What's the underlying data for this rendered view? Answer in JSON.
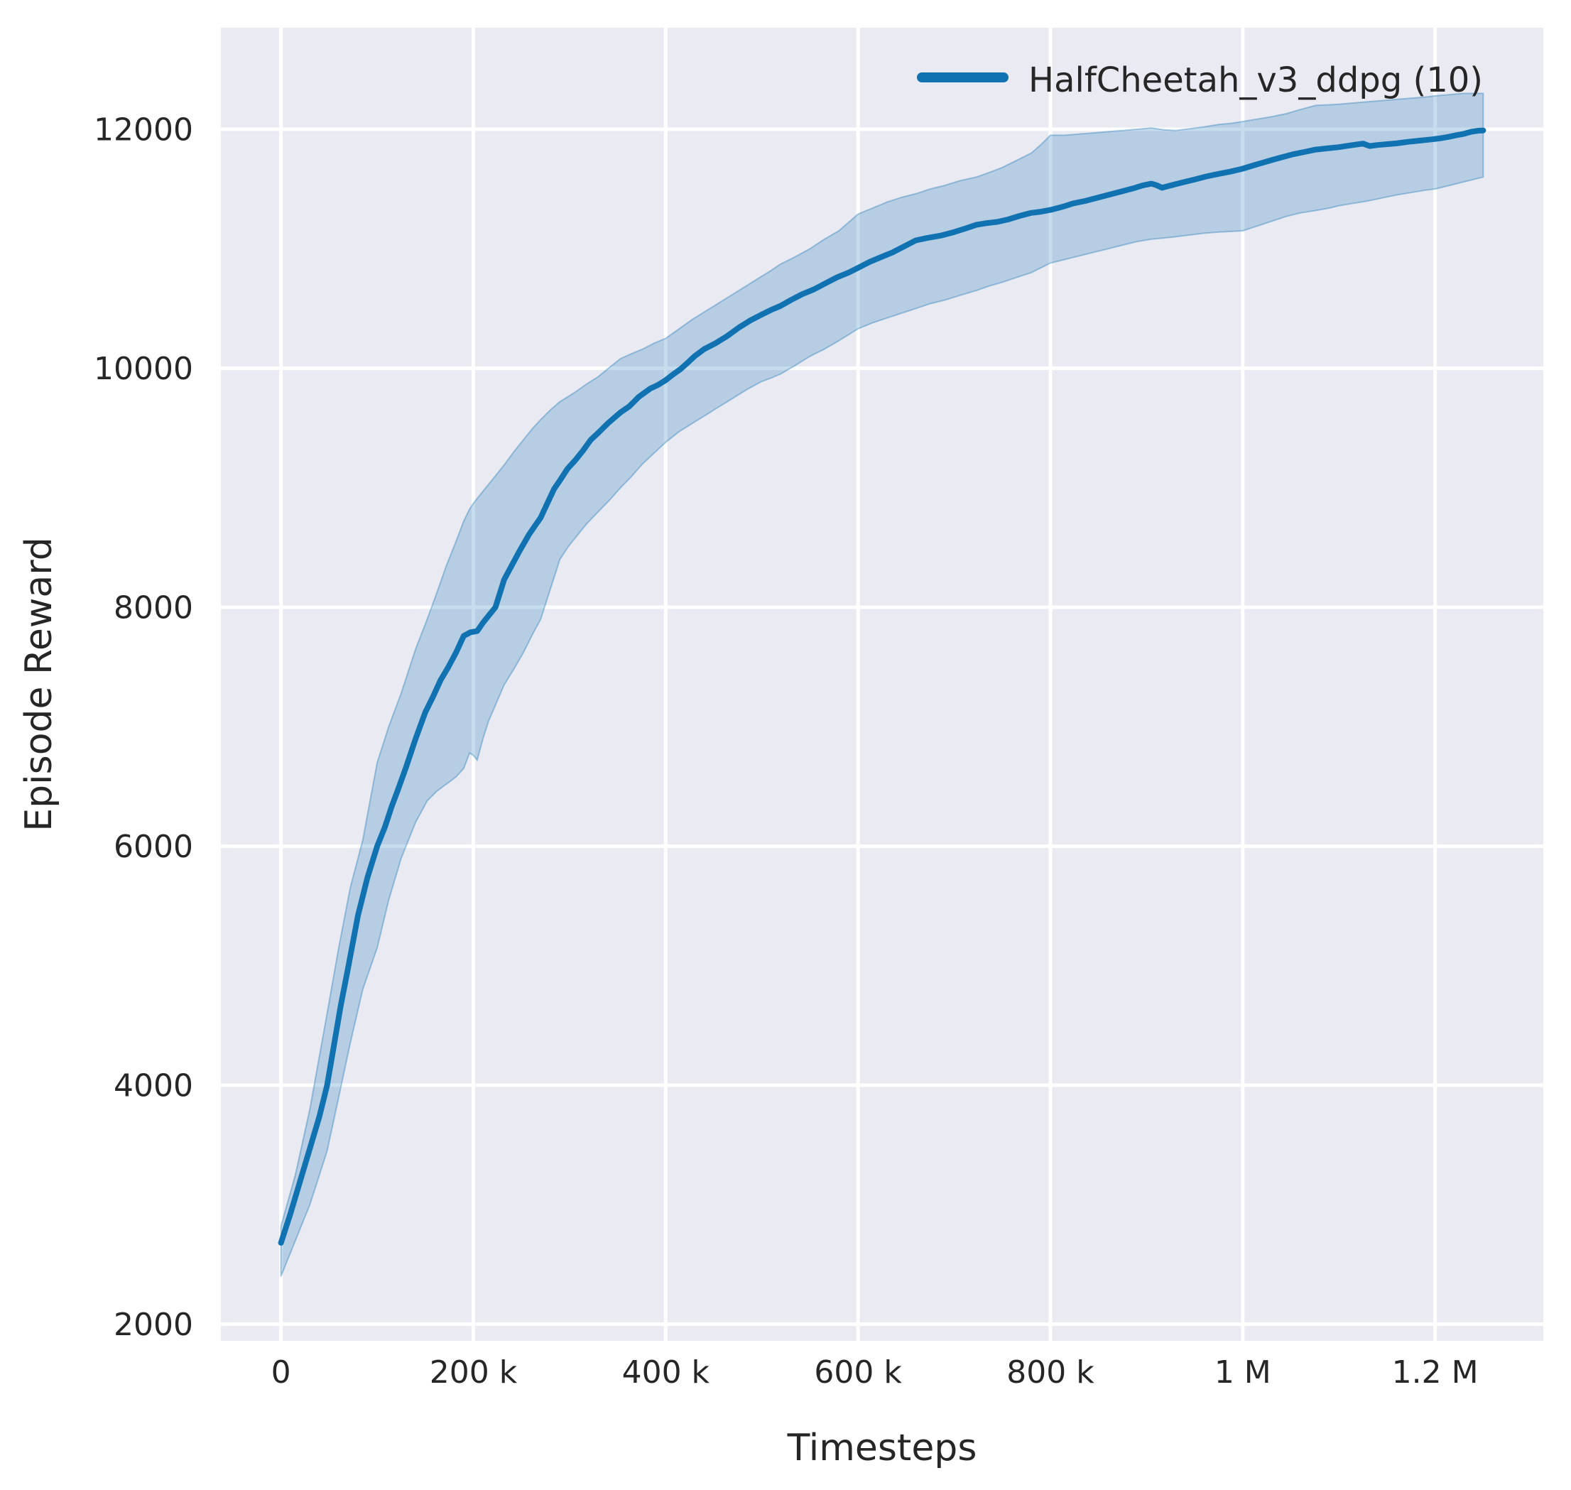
{
  "figure": {
    "background": "#ffffff",
    "plot_background": "#eaeaf2",
    "grid_color": "#ffffff",
    "text_color": "#262626"
  },
  "chart_data": {
    "type": "line",
    "title": "",
    "xlabel": "Timesteps",
    "ylabel": "Episode Reward",
    "grid": true,
    "legend_position": "upper right",
    "legend": [
      {
        "label": "HalfCheetah_v3_ddpg (10)",
        "color": "#1172b2"
      }
    ],
    "x_axis": {
      "unit": "timesteps",
      "domain_k": [
        -62.5,
        1312.5
      ],
      "ticks": [
        {
          "value_k": 0,
          "label": "0"
        },
        {
          "value_k": 200,
          "label": "200 k"
        },
        {
          "value_k": 400,
          "label": "400 k"
        },
        {
          "value_k": 600,
          "label": "600 k"
        },
        {
          "value_k": 800,
          "label": "800 k"
        },
        {
          "value_k": 1000,
          "label": "1 M"
        },
        {
          "value_k": 1200,
          "label": "1.2 M"
        }
      ]
    },
    "y_axis": {
      "unit": "episode reward",
      "domain": [
        1860,
        12850
      ],
      "ticks": [
        {
          "value": 2000,
          "label": "2000"
        },
        {
          "value": 4000,
          "label": "4000"
        },
        {
          "value": 6000,
          "label": "6000"
        },
        {
          "value": 8000,
          "label": "8000"
        },
        {
          "value": 10000,
          "label": "10000"
        },
        {
          "value": 12000,
          "label": "12000"
        }
      ]
    },
    "series": [
      {
        "name": "HalfCheetah_v3_ddpg (10)",
        "color": "#1172b2",
        "line_width": 8,
        "band_alpha": 0.24,
        "x_k": [
          0,
          10,
          20,
          30,
          40,
          48,
          55,
          62,
          70,
          80,
          90,
          100,
          108,
          115,
          122,
          130,
          140,
          150,
          158,
          166,
          174,
          182,
          190,
          197,
          204,
          210,
          216,
          223,
          232,
          240,
          248,
          258,
          264,
          270,
          277,
          284,
          290,
          298,
          306,
          314,
          322,
          330,
          340,
          353,
          362,
          372,
          384,
          392,
          400,
          408,
          415,
          422,
          430,
          440,
          452,
          464,
          476,
          488,
          500,
          510,
          519,
          530,
          542,
          554,
          566,
          578,
          590,
          600,
          612,
          624,
          636,
          648,
          660,
          672,
          686,
          700,
          712,
          723,
          734,
          745,
          756,
          768,
          780,
          790,
          800,
          812,
          824,
          836,
          848,
          860,
          872,
          886,
          896,
          905,
          911,
          916,
          923,
          930,
          940,
          950,
          962,
          974,
          987,
          1000,
          1012,
          1025,
          1038,
          1052,
          1064,
          1076,
          1088,
          1100,
          1112,
          1125,
          1132,
          1140,
          1150,
          1160,
          1172,
          1184,
          1196,
          1206,
          1213,
          1222,
          1230,
          1238,
          1245,
          1250
        ],
        "mean": [
          2680,
          2930,
          3200,
          3470,
          3740,
          4000,
          4330,
          4660,
          4990,
          5420,
          5740,
          6000,
          6160,
          6330,
          6480,
          6660,
          6900,
          7120,
          7250,
          7390,
          7500,
          7620,
          7760,
          7790,
          7800,
          7870,
          7930,
          8000,
          8230,
          8350,
          8470,
          8610,
          8680,
          8750,
          8870,
          8990,
          9060,
          9160,
          9230,
          9310,
          9400,
          9460,
          9540,
          9630,
          9680,
          9760,
          9830,
          9860,
          9900,
          9950,
          9990,
          10040,
          10100,
          10160,
          10210,
          10270,
          10340,
          10400,
          10450,
          10490,
          10520,
          10570,
          10620,
          10660,
          10710,
          10760,
          10800,
          10840,
          10890,
          10930,
          10970,
          11020,
          11070,
          11090,
          11110,
          11140,
          11170,
          11200,
          11215,
          11225,
          11245,
          11275,
          11300,
          11310,
          11325,
          11350,
          11380,
          11400,
          11425,
          11450,
          11475,
          11505,
          11530,
          11545,
          11530,
          11510,
          11525,
          11540,
          11560,
          11580,
          11605,
          11625,
          11645,
          11670,
          11700,
          11730,
          11760,
          11790,
          11810,
          11830,
          11840,
          11850,
          11865,
          11880,
          11860,
          11868,
          11875,
          11882,
          11895,
          11905,
          11915,
          11925,
          11935,
          11950,
          11962,
          11980,
          11988,
          11990
        ],
        "band": [
          [
            0,
            2400,
            2820
          ],
          [
            15,
            2700,
            3250
          ],
          [
            30,
            3000,
            3800
          ],
          [
            48,
            3450,
            4600
          ],
          [
            60,
            3900,
            5150
          ],
          [
            72,
            4350,
            5650
          ],
          [
            85,
            4800,
            6050
          ],
          [
            100,
            5150,
            6700
          ],
          [
            112,
            5550,
            7000
          ],
          [
            125,
            5900,
            7280
          ],
          [
            140,
            6200,
            7650
          ],
          [
            152,
            6380,
            7900
          ],
          [
            162,
            6460,
            8120
          ],
          [
            172,
            6520,
            8350
          ],
          [
            182,
            6580,
            8550
          ],
          [
            190,
            6650,
            8720
          ],
          [
            196,
            6780,
            8820
          ],
          [
            200,
            6760,
            8870
          ],
          [
            204,
            6720,
            8910
          ],
          [
            210,
            6900,
            8970
          ],
          [
            216,
            7050,
            9030
          ],
          [
            224,
            7200,
            9110
          ],
          [
            232,
            7350,
            9190
          ],
          [
            242,
            7480,
            9300
          ],
          [
            252,
            7620,
            9400
          ],
          [
            262,
            7780,
            9500
          ],
          [
            270,
            7900,
            9570
          ],
          [
            280,
            8150,
            9650
          ],
          [
            290,
            8400,
            9720
          ],
          [
            298,
            8500,
            9760
          ],
          [
            306,
            8580,
            9800
          ],
          [
            318,
            8700,
            9870
          ],
          [
            330,
            8800,
            9930
          ],
          [
            342,
            8900,
            10010
          ],
          [
            353,
            9000,
            10080
          ],
          [
            364,
            9090,
            10120
          ],
          [
            376,
            9200,
            10160
          ],
          [
            388,
            9290,
            10210
          ],
          [
            400,
            9380,
            10250
          ],
          [
            414,
            9470,
            10330
          ],
          [
            428,
            9540,
            10410
          ],
          [
            442,
            9610,
            10480
          ],
          [
            456,
            9680,
            10550
          ],
          [
            470,
            9750,
            10620
          ],
          [
            484,
            9820,
            10690
          ],
          [
            500,
            9890,
            10770
          ],
          [
            510,
            9920,
            10820
          ],
          [
            519,
            9950,
            10870
          ],
          [
            534,
            10020,
            10930
          ],
          [
            550,
            10100,
            11000
          ],
          [
            565,
            10160,
            11080
          ],
          [
            580,
            10230,
            11150
          ],
          [
            590,
            10280,
            11220
          ],
          [
            600,
            10330,
            11290
          ],
          [
            615,
            10380,
            11340
          ],
          [
            630,
            10420,
            11390
          ],
          [
            645,
            10460,
            11430
          ],
          [
            660,
            10500,
            11460
          ],
          [
            675,
            10540,
            11500
          ],
          [
            690,
            10570,
            11530
          ],
          [
            706,
            10610,
            11570
          ],
          [
            723,
            10650,
            11600
          ],
          [
            737,
            10690,
            11640
          ],
          [
            750,
            10720,
            11680
          ],
          [
            765,
            10760,
            11740
          ],
          [
            780,
            10800,
            11800
          ],
          [
            790,
            10840,
            11870
          ],
          [
            800,
            10880,
            11950
          ],
          [
            815,
            10910,
            11950
          ],
          [
            830,
            10940,
            11960
          ],
          [
            845,
            10970,
            11970
          ],
          [
            860,
            11000,
            11980
          ],
          [
            875,
            11030,
            11990
          ],
          [
            890,
            11060,
            12000
          ],
          [
            905,
            11080,
            12010
          ],
          [
            918,
            11090,
            11995
          ],
          [
            930,
            11100,
            11990
          ],
          [
            945,
            11115,
            12005
          ],
          [
            960,
            11130,
            12020
          ],
          [
            975,
            11140,
            12040
          ],
          [
            988,
            11145,
            12050
          ],
          [
            1000,
            11150,
            12065
          ],
          [
            1015,
            11190,
            12085
          ],
          [
            1030,
            11230,
            12105
          ],
          [
            1045,
            11270,
            12130
          ],
          [
            1060,
            11300,
            12165
          ],
          [
            1076,
            11320,
            12200
          ],
          [
            1090,
            11340,
            12205
          ],
          [
            1100,
            11360,
            12210
          ],
          [
            1115,
            11380,
            12220
          ],
          [
            1130,
            11400,
            12230
          ],
          [
            1145,
            11425,
            12240
          ],
          [
            1160,
            11450,
            12250
          ],
          [
            1175,
            11470,
            12260
          ],
          [
            1190,
            11490,
            12270
          ],
          [
            1200,
            11500,
            12280
          ],
          [
            1215,
            11530,
            12290
          ],
          [
            1230,
            11560,
            12300
          ],
          [
            1240,
            11580,
            12300
          ],
          [
            1250,
            11600,
            12300
          ]
        ]
      }
    ]
  }
}
